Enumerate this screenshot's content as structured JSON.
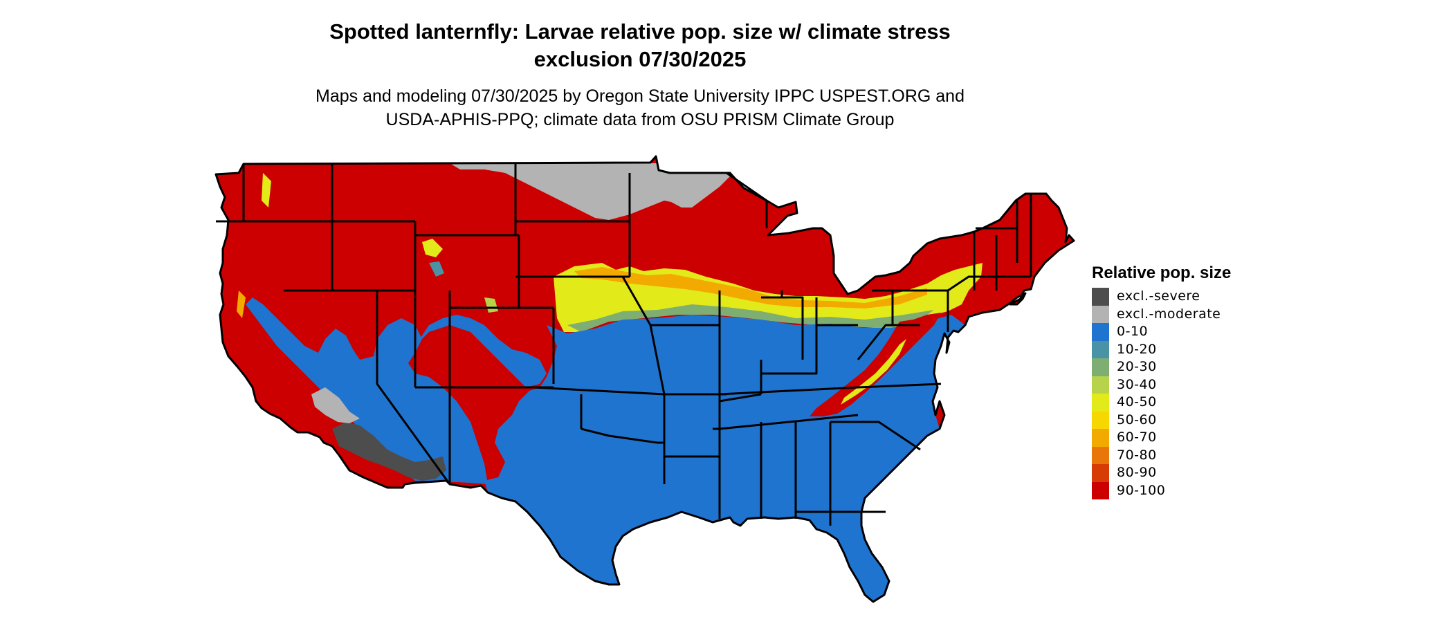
{
  "title": {
    "line1": "Spotted lanternfly: Larvae relative pop. size w/ climate stress",
    "line2": "exclusion 07/30/2025"
  },
  "subtitle": {
    "line1": "Maps and modeling 07/30/2025 by Oregon State University IPPC USPEST.ORG and",
    "line2": "USDA-APHIS-PPQ; climate data from OSU PRISM Climate Group"
  },
  "legend": {
    "title": "Relative pop. size",
    "items": [
      {
        "label": "excl.-severe",
        "color": "#4d4d4d"
      },
      {
        "label": "excl.-moderate",
        "color": "#b3b3b3"
      },
      {
        "label": "0-10",
        "color": "#1f74d0"
      },
      {
        "label": "10-20",
        "color": "#4a93a6"
      },
      {
        "label": "20-30",
        "color": "#7fae72"
      },
      {
        "label": "30-40",
        "color": "#b6d34a"
      },
      {
        "label": "40-50",
        "color": "#e3ea1a"
      },
      {
        "label": "50-60",
        "color": "#f6d700"
      },
      {
        "label": "60-70",
        "color": "#f2aa00"
      },
      {
        "label": "70-80",
        "color": "#e87608"
      },
      {
        "label": "80-90",
        "color": "#d83c05"
      },
      {
        "label": "90-100",
        "color": "#cc0000"
      }
    ]
  },
  "map": {
    "region": "Contiguous United States",
    "colors": {
      "high": "#cc0000",
      "low": "#1f74d0",
      "excl_moderate": "#b3b3b3",
      "excl_severe": "#4d4d4d",
      "mid": "#e3ea1a",
      "warm": "#f2aa00",
      "border": "#000000"
    }
  }
}
